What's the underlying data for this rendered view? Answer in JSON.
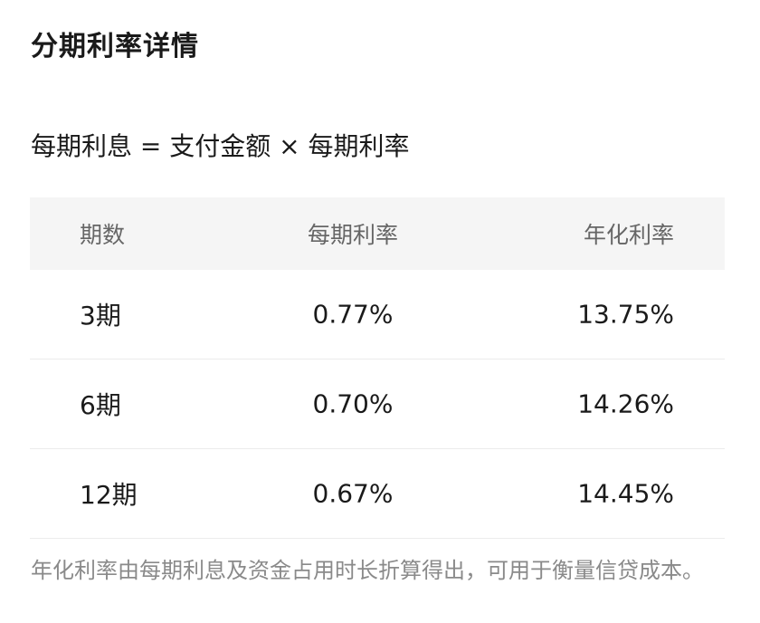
{
  "title": "分期利率详情",
  "formula": "每期利息 = 支付金额 × 每期利率",
  "table": {
    "headers": [
      "期数",
      "每期利率",
      "年化利率"
    ],
    "rows": [
      {
        "term": "3期",
        "period_rate": "0.77%",
        "annual_rate": "13.75%"
      },
      {
        "term": "6期",
        "period_rate": "0.70%",
        "annual_rate": "14.26%"
      },
      {
        "term": "12期",
        "period_rate": "0.67%",
        "annual_rate": "14.45%"
      }
    ]
  },
  "note": "年化利率由每期利息及资金占用时长折算得出，可用于衡量信贷成本。"
}
